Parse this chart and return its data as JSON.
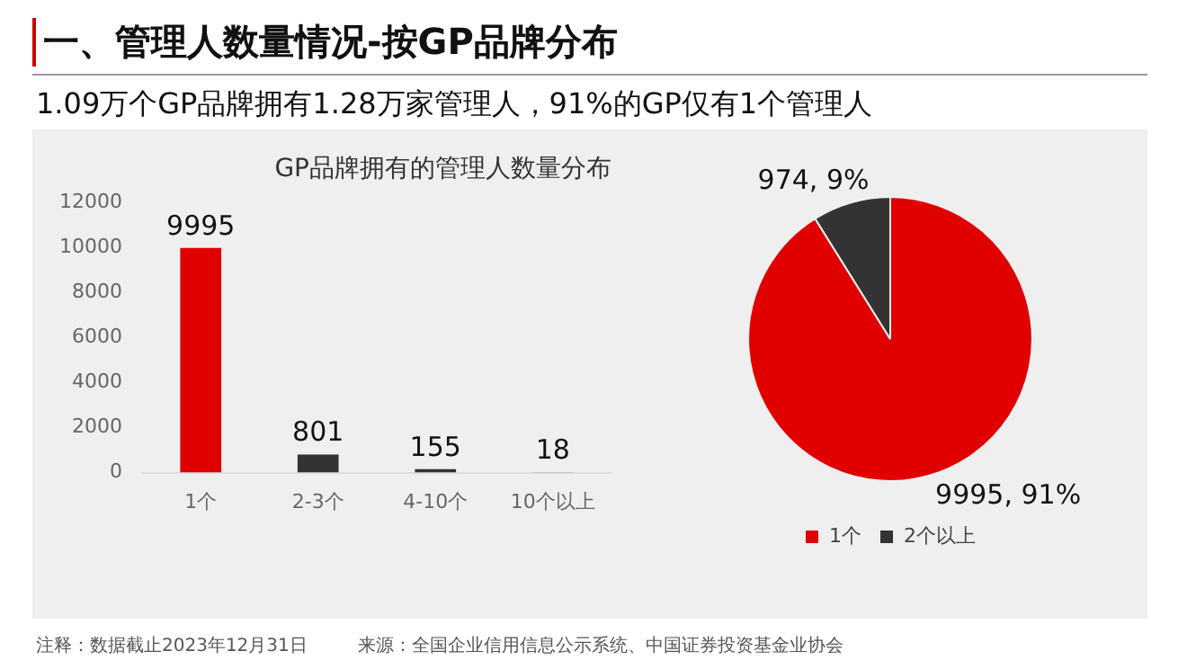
{
  "chart_data": [
    {
      "type": "other",
      "title": "一、管理人数量情况-按GP品牌分布",
      "subtitle": "1.09万个GP品牌拥有1.28万家管理人，91%的GP仅有1个管理人",
      "annotations": [
        "注释：数据截止2023年12月31日",
        "来源：全国企业信用信息公示系统、中国证券投资基金业协会"
      ]
    },
    {
      "type": "bar",
      "title": "GP品牌拥有的管理人数量分布",
      "categories": [
        "1个",
        "2-3个",
        "4-10个",
        "10个以上"
      ],
      "values": [
        9995,
        801,
        155,
        18
      ],
      "colors": [
        "#e00000",
        "#333333",
        "#333333",
        "#333333"
      ],
      "ylim": [
        0,
        12000
      ],
      "yticks": [
        0,
        2000,
        4000,
        6000,
        8000,
        10000,
        12000
      ],
      "grid": false,
      "data_labels": true,
      "legend": false
    },
    {
      "type": "pie",
      "categories": [
        "1个",
        "2个以上"
      ],
      "values": [
        9995,
        974
      ],
      "colors": [
        "#e00000",
        "#333333"
      ],
      "value_labels": [
        "9995, 91%",
        "974, 9%"
      ],
      "legend": "bottom"
    }
  ]
}
